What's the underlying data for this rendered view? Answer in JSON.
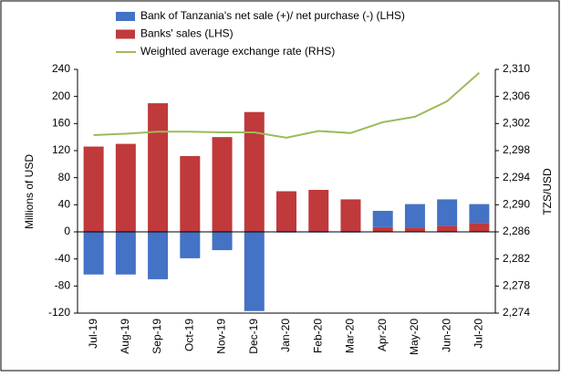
{
  "chart_data": {
    "type": "bar",
    "categories": [
      "Jul-19",
      "Aug-19",
      "Sep-19",
      "Oct-19",
      "Nov-19",
      "Dec-19",
      "Jan-20",
      "Feb-20",
      "Mar-20",
      "Apr-20",
      "May-20",
      "Jun-20",
      "Jul-20"
    ],
    "series": [
      {
        "name": "Bank of Tanzania's net sale (+)/ net purchase (-) (LHS)",
        "color": "#4472c4",
        "type": "bar",
        "values": [
          -63,
          -63,
          -70,
          -39,
          -27,
          -117,
          -1,
          -1,
          -1,
          24,
          35,
          39,
          28
        ]
      },
      {
        "name": "Banks' sales (LHS)",
        "color": "#c0393b",
        "type": "bar",
        "values": [
          126,
          130,
          190,
          112,
          140,
          177,
          60,
          62,
          48,
          7,
          6,
          9,
          13
        ]
      },
      {
        "name": "Weighted average exchange rate (RHS)",
        "color": "#9bbb59",
        "type": "line",
        "axis": "y2",
        "values": [
          2300.3,
          2300.5,
          2300.8,
          2300.8,
          2300.7,
          2300.7,
          2299.9,
          2300.9,
          2300.6,
          2302.2,
          2303.0,
          2305.3,
          2309.5
        ]
      }
    ],
    "ylabel": "Millions of USD",
    "y2label": "TZS/USD",
    "ylim": [
      -120,
      240
    ],
    "yticks": [
      -120,
      -80,
      -40,
      0,
      40,
      80,
      120,
      160,
      200,
      240
    ],
    "y2lim": [
      2274,
      2310
    ],
    "y2ticks": [
      {
        "value": 2274,
        "label": "2,274"
      },
      {
        "value": 2278,
        "label": "2,278"
      },
      {
        "value": 2282,
        "label": "2,282"
      },
      {
        "value": 2286,
        "label": "2,286"
      },
      {
        "value": 2290,
        "label": "2,290"
      },
      {
        "value": 2294,
        "label": "2,294"
      },
      {
        "value": 2298,
        "label": "2,298"
      },
      {
        "value": 2302,
        "label": "2,302"
      },
      {
        "value": 2306,
        "label": "2,306"
      },
      {
        "value": 2310,
        "label": "2,310"
      }
    ]
  }
}
